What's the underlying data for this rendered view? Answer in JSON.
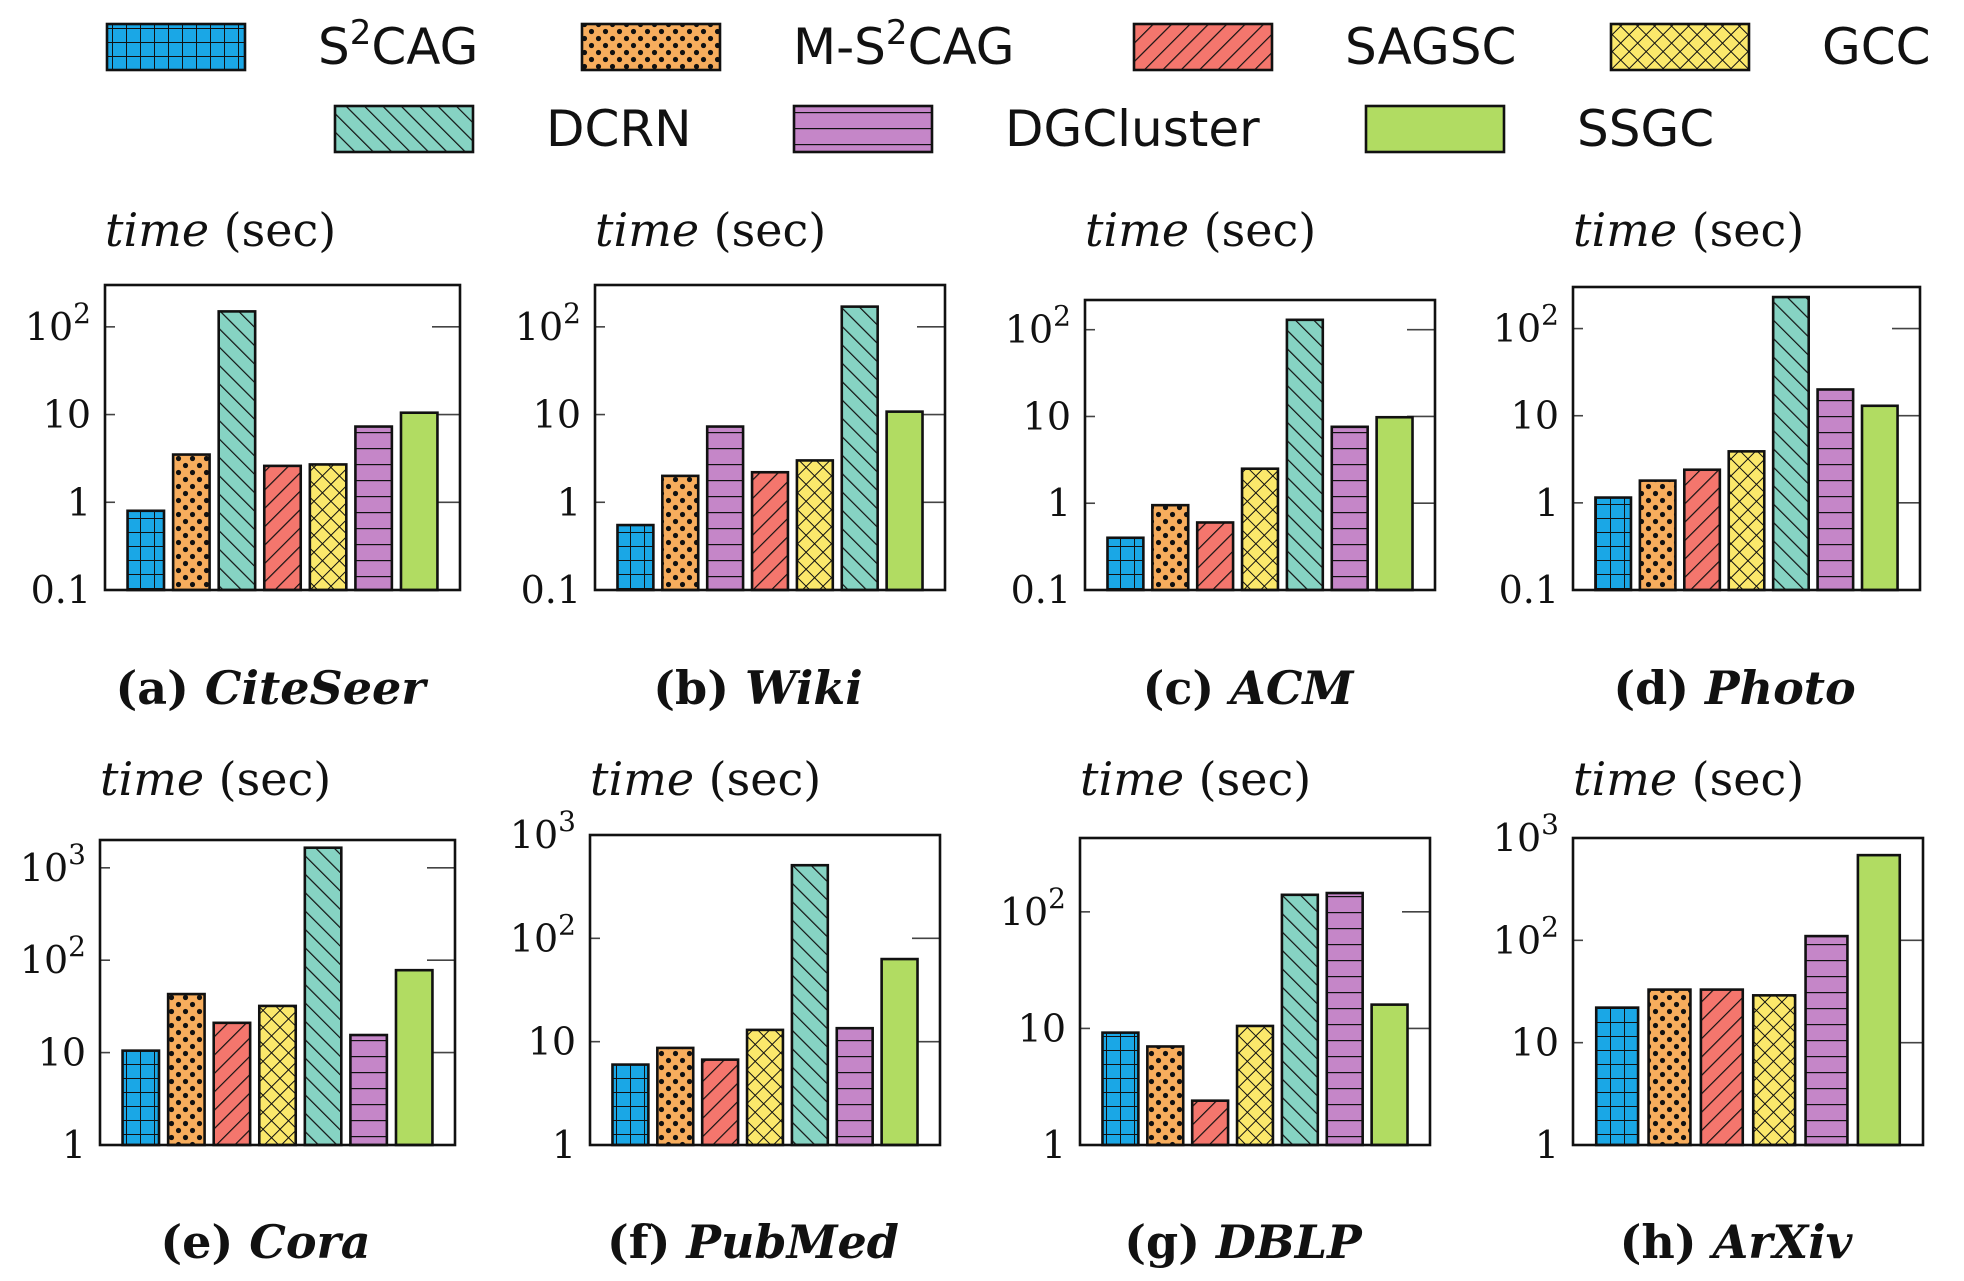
{
  "legend": [
    {
      "label": "S",
      "sup": "2",
      "suffix": "CAG",
      "color": "#1aa7e6",
      "pattern": "grid"
    },
    {
      "label": "M-S",
      "sup": "2",
      "suffix": "CAG",
      "color": "#f7ad5d",
      "pattern": "dots"
    },
    {
      "label": "SAGSC",
      "sup": "",
      "suffix": "",
      "color": "#f4766d",
      "pattern": "backslash"
    },
    {
      "label": "GCC",
      "sup": "",
      "suffix": "",
      "color": "#fbe86b",
      "pattern": "crosshatch"
    },
    {
      "label": "DCRN",
      "sup": "",
      "suffix": "",
      "color": "#86d3c3",
      "pattern": "slash"
    },
    {
      "label": "DGCluster",
      "sup": "",
      "suffix": "",
      "color": "#c586c8",
      "pattern": "hlines"
    },
    {
      "label": "SSGC",
      "sup": "",
      "suffix": "",
      "color": "#b1dc62",
      "pattern": "solid"
    }
  ],
  "y_title": {
    "italic": "time",
    "rest": " (sec)"
  },
  "chart_data": [
    {
      "type": "bar",
      "title": "CiteSeer",
      "caption_prefix": "(a)",
      "yscale": "log",
      "ylim": [
        0.1,
        300
      ],
      "yticks": [
        {
          "v": 0.1,
          "t": "0.1"
        },
        {
          "v": 1,
          "t": "1"
        },
        {
          "v": 10,
          "t": "10"
        },
        {
          "v": 100,
          "b": "10",
          "e": "2"
        }
      ],
      "bars": [
        {
          "method": "S2CAG",
          "value": 0.8
        },
        {
          "method": "M-S2CAG",
          "value": 3.5
        },
        {
          "method": "DCRN",
          "value": 150
        },
        {
          "method": "SAGSC",
          "value": 2.6
        },
        {
          "method": "GCC",
          "value": 2.7
        },
        {
          "method": "DGCluster",
          "value": 7.3
        },
        {
          "method": "SSGC",
          "value": 10.5
        }
      ]
    },
    {
      "type": "bar",
      "title": "Wiki",
      "caption_prefix": "(b)",
      "yscale": "log",
      "ylim": [
        0.1,
        300
      ],
      "yticks": [
        {
          "v": 0.1,
          "t": "0.1"
        },
        {
          "v": 1,
          "t": "1"
        },
        {
          "v": 10,
          "t": "10"
        },
        {
          "v": 100,
          "b": "10",
          "e": "2"
        }
      ],
      "bars": [
        {
          "method": "S2CAG",
          "value": 0.55
        },
        {
          "method": "M-S2CAG",
          "value": 2.0
        },
        {
          "method": "DGCluster",
          "value": 7.3
        },
        {
          "method": "SAGSC",
          "value": 2.2
        },
        {
          "method": "GCC",
          "value": 3.0
        },
        {
          "method": "DCRN",
          "value": 170
        },
        {
          "method": "SSGC",
          "value": 10.8
        }
      ]
    },
    {
      "type": "bar",
      "title": "ACM",
      "caption_prefix": "(c)",
      "yscale": "log",
      "ylim": [
        0.1,
        220
      ],
      "yticks": [
        {
          "v": 0.1,
          "t": "0.1"
        },
        {
          "v": 1,
          "t": "1"
        },
        {
          "v": 10,
          "t": "10"
        },
        {
          "v": 100,
          "b": "10",
          "e": "2"
        }
      ],
      "bars": [
        {
          "method": "S2CAG",
          "value": 0.4
        },
        {
          "method": "M-S2CAG",
          "value": 0.95
        },
        {
          "method": "SAGSC",
          "value": 0.6
        },
        {
          "method": "GCC",
          "value": 2.5
        },
        {
          "method": "DCRN",
          "value": 130
        },
        {
          "method": "DGCluster",
          "value": 7.6
        },
        {
          "method": "SSGC",
          "value": 9.8
        }
      ]
    },
    {
      "type": "bar",
      "title": "Photo",
      "caption_prefix": "(d)",
      "yscale": "log",
      "ylim": [
        0.1,
        300
      ],
      "yticks": [
        {
          "v": 0.1,
          "t": "0.1"
        },
        {
          "v": 1,
          "t": "1"
        },
        {
          "v": 10,
          "t": "10"
        },
        {
          "v": 100,
          "b": "10",
          "e": "2"
        }
      ],
      "bars": [
        {
          "method": "S2CAG",
          "value": 1.15
        },
        {
          "method": "M-S2CAG",
          "value": 1.8
        },
        {
          "method": "SAGSC",
          "value": 2.4
        },
        {
          "method": "GCC",
          "value": 3.9
        },
        {
          "method": "DCRN",
          "value": 230
        },
        {
          "method": "DGCluster",
          "value": 20
        },
        {
          "method": "SSGC",
          "value": 13
        }
      ]
    },
    {
      "type": "bar",
      "title": "Cora",
      "caption_prefix": "(e)",
      "yscale": "log",
      "ylim": [
        1,
        2000
      ],
      "yticks": [
        {
          "v": 1,
          "t": "1"
        },
        {
          "v": 10,
          "t": "10"
        },
        {
          "v": 100,
          "b": "10",
          "e": "2"
        },
        {
          "v": 1000,
          "b": "10",
          "e": "3"
        }
      ],
      "bars": [
        {
          "method": "S2CAG",
          "value": 10.5
        },
        {
          "method": "M-S2CAG",
          "value": 43
        },
        {
          "method": "SAGSC",
          "value": 21
        },
        {
          "method": "GCC",
          "value": 32
        },
        {
          "method": "DCRN",
          "value": 1650
        },
        {
          "method": "DGCluster",
          "value": 15.5
        },
        {
          "method": "SSGC",
          "value": 78
        }
      ]
    },
    {
      "type": "bar",
      "title": "PubMed",
      "caption_prefix": "(f)",
      "yscale": "log",
      "ylim": [
        1,
        1000
      ],
      "yticks": [
        {
          "v": 1,
          "t": "1"
        },
        {
          "v": 10,
          "t": "10"
        },
        {
          "v": 100,
          "b": "10",
          "e": "2"
        },
        {
          "v": 1000,
          "b": "10",
          "e": "3"
        }
      ],
      "bars": [
        {
          "method": "S2CAG",
          "value": 6.0
        },
        {
          "method": "M-S2CAG",
          "value": 8.7
        },
        {
          "method": "SAGSC",
          "value": 6.7
        },
        {
          "method": "GCC",
          "value": 13
        },
        {
          "method": "DCRN",
          "value": 510
        },
        {
          "method": "DGCluster",
          "value": 13.5
        },
        {
          "method": "SSGC",
          "value": 63
        }
      ]
    },
    {
      "type": "bar",
      "title": "DBLP",
      "caption_prefix": "(g)",
      "yscale": "log",
      "ylim": [
        1,
        430
      ],
      "yticks": [
        {
          "v": 1,
          "t": "1"
        },
        {
          "v": 10,
          "t": "10"
        },
        {
          "v": 100,
          "b": "10",
          "e": "2"
        }
      ],
      "bars": [
        {
          "method": "S2CAG",
          "value": 9.2
        },
        {
          "method": "M-S2CAG",
          "value": 7.0
        },
        {
          "method": "SAGSC",
          "value": 2.4
        },
        {
          "method": "GCC",
          "value": 10.5
        },
        {
          "method": "DCRN",
          "value": 140
        },
        {
          "method": "DGCluster",
          "value": 145
        },
        {
          "method": "SSGC",
          "value": 16
        }
      ]
    },
    {
      "type": "bar",
      "title": "ArXiv",
      "caption_prefix": "(h)",
      "yscale": "log",
      "ylim": [
        1,
        1000
      ],
      "yticks": [
        {
          "v": 1,
          "t": "1"
        },
        {
          "v": 10,
          "t": "10"
        },
        {
          "v": 100,
          "b": "10",
          "e": "2"
        },
        {
          "v": 1000,
          "b": "10",
          "e": "3"
        }
      ],
      "bars": [
        {
          "method": "S2CAG",
          "value": 22
        },
        {
          "method": "M-S2CAG",
          "value": 33
        },
        {
          "method": "SAGSC",
          "value": 33
        },
        {
          "method": "GCC",
          "value": 29
        },
        {
          "method": "DGCluster",
          "value": 110
        },
        {
          "method": "SSGC",
          "value": 680
        }
      ]
    }
  ]
}
